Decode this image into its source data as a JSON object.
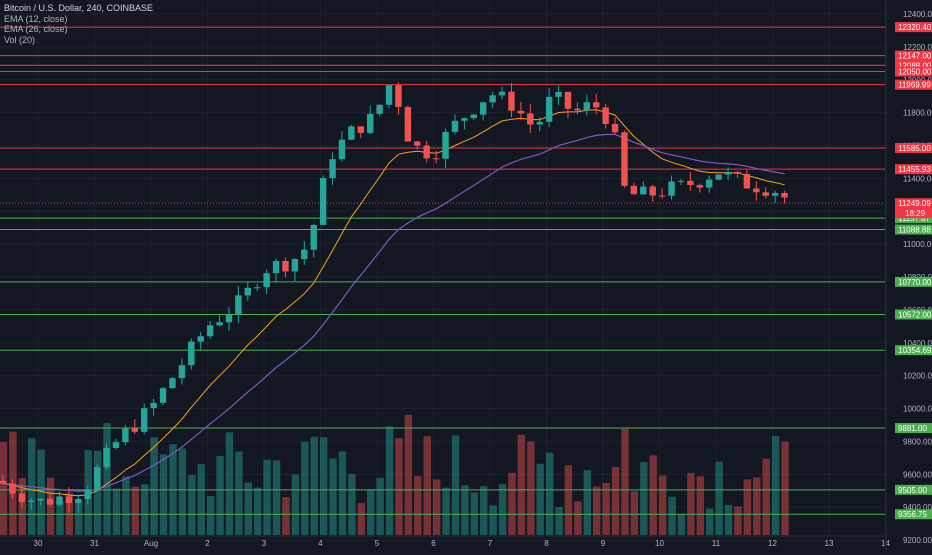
{
  "legend": {
    "title": "Bitcoin / U.S. Dollar, 240, COINBASE",
    "ema_fast": "EMA (12, close)",
    "ema_slow": "EMA (26, close)",
    "volume": "Vol (20)"
  },
  "chart_data": {
    "type": "candlestick",
    "symbol": "Bitcoin / U.S. Dollar",
    "timeframe": "240",
    "exchange": "COINBASE",
    "y_ticks": [
      "12400.00",
      "12200.00",
      "12000.00",
      "11800.00",
      "11600.00",
      "11400.00",
      "11200.00",
      "11000.00",
      "10800.00",
      "10600.00",
      "10400.00",
      "10200.00",
      "10000.00",
      "9800.00",
      "9600.00",
      "9400.00",
      "9200.00"
    ],
    "x_labels": [
      "30",
      "31",
      "Aug",
      "2",
      "3",
      "4",
      "5",
      "6",
      "7",
      "8",
      "9",
      "10",
      "11",
      "12",
      "13",
      "14"
    ],
    "resistance_levels": [
      {
        "label": "12320.40",
        "color": "#f23645"
      },
      {
        "label": "12147.00",
        "color": "#f23645"
      },
      {
        "label": "12088.00",
        "color": "#f23645"
      },
      {
        "label": "12050.00",
        "color": "#f23645"
      },
      {
        "label": "11969.99",
        "color": "#f23645"
      },
      {
        "label": "11585.00",
        "color": "#f23645"
      },
      {
        "label": "11455.93",
        "color": "#f23645"
      }
    ],
    "support_levels": [
      {
        "label": "11157.87",
        "color": "#4caf50"
      },
      {
        "label": "11088.88",
        "color": "#4caf50"
      },
      {
        "label": "10770.00",
        "color": "#4caf50"
      },
      {
        "label": "10572.00",
        "color": "#4caf50"
      },
      {
        "label": "10354.69",
        "color": "#4caf50"
      },
      {
        "label": "9881.00",
        "color": "#4caf50"
      },
      {
        "label": "9505.00",
        "color": "#4caf50"
      },
      {
        "label": "9356.75",
        "color": "#4caf50"
      }
    ],
    "current_price": {
      "label": "11249.09",
      "countdown": "18:29",
      "color": "#f23645"
    },
    "colors": {
      "up": "#26a69a",
      "down": "#ef5350",
      "ema_fast": "#f7a21b",
      "ema_slow": "#7e57c2"
    }
  }
}
